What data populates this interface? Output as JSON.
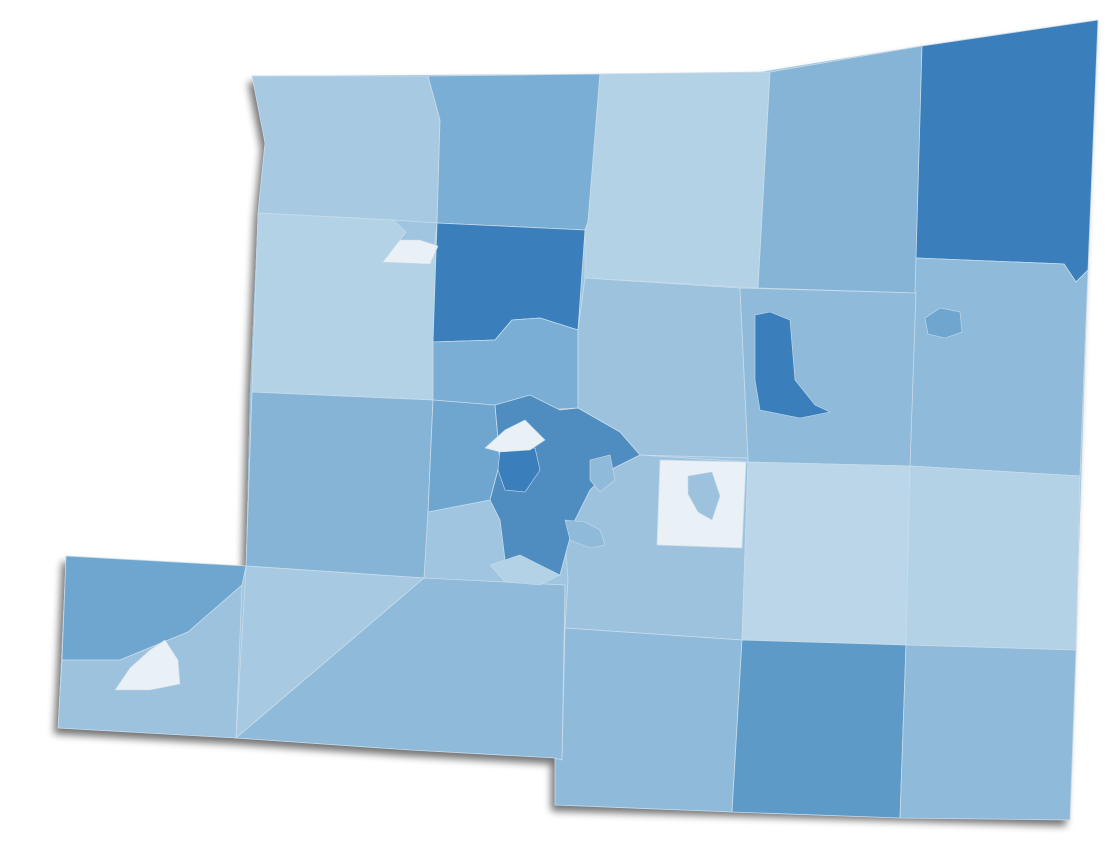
{
  "map": {
    "type": "choropleth",
    "palette": {
      "c0": "#e9f0f6",
      "c1": "#bad6e8",
      "c2": "#b3d2e6",
      "c3": "#a7cae2",
      "c4": "#9cc2de",
      "c5": "#8fbada",
      "c6": "#86b4d7",
      "c7": "#7aaed4",
      "c8": "#6ea6cf",
      "c9": "#5e9ac8",
      "c10": "#4f8dc0",
      "c11": "#3a7fbb"
    },
    "regions": [
      {
        "id": "nw-1",
        "shade": "c3"
      },
      {
        "id": "n-2",
        "shade": "c7"
      },
      {
        "id": "n-3",
        "shade": "c2"
      },
      {
        "id": "n-4",
        "shade": "c6"
      },
      {
        "id": "ne-5",
        "shade": "c11"
      },
      {
        "id": "w-6",
        "shade": "c2"
      },
      {
        "id": "c-7",
        "shade": "c11"
      },
      {
        "id": "c-8",
        "shade": "c7"
      },
      {
        "id": "c-9",
        "shade": "c4"
      },
      {
        "id": "e-10",
        "shade": "c5"
      },
      {
        "id": "w-11",
        "shade": "c6"
      },
      {
        "id": "c-12",
        "shade": "c8"
      },
      {
        "id": "c-13",
        "shade": "c4"
      },
      {
        "id": "c-14",
        "shade": "c0"
      },
      {
        "id": "e-15",
        "shade": "c1"
      },
      {
        "id": "e-16",
        "shade": "c2"
      },
      {
        "id": "sw-17",
        "shade": "c8"
      },
      {
        "id": "sw-18",
        "shade": "c4"
      },
      {
        "id": "sw-19",
        "shade": "c3"
      },
      {
        "id": "s-20",
        "shade": "c5"
      },
      {
        "id": "s-21",
        "shade": "c5"
      },
      {
        "id": "s-22",
        "shade": "c9"
      },
      {
        "id": "se-23",
        "shade": "c5"
      },
      {
        "id": "urban-core",
        "shade": "c10"
      }
    ]
  }
}
